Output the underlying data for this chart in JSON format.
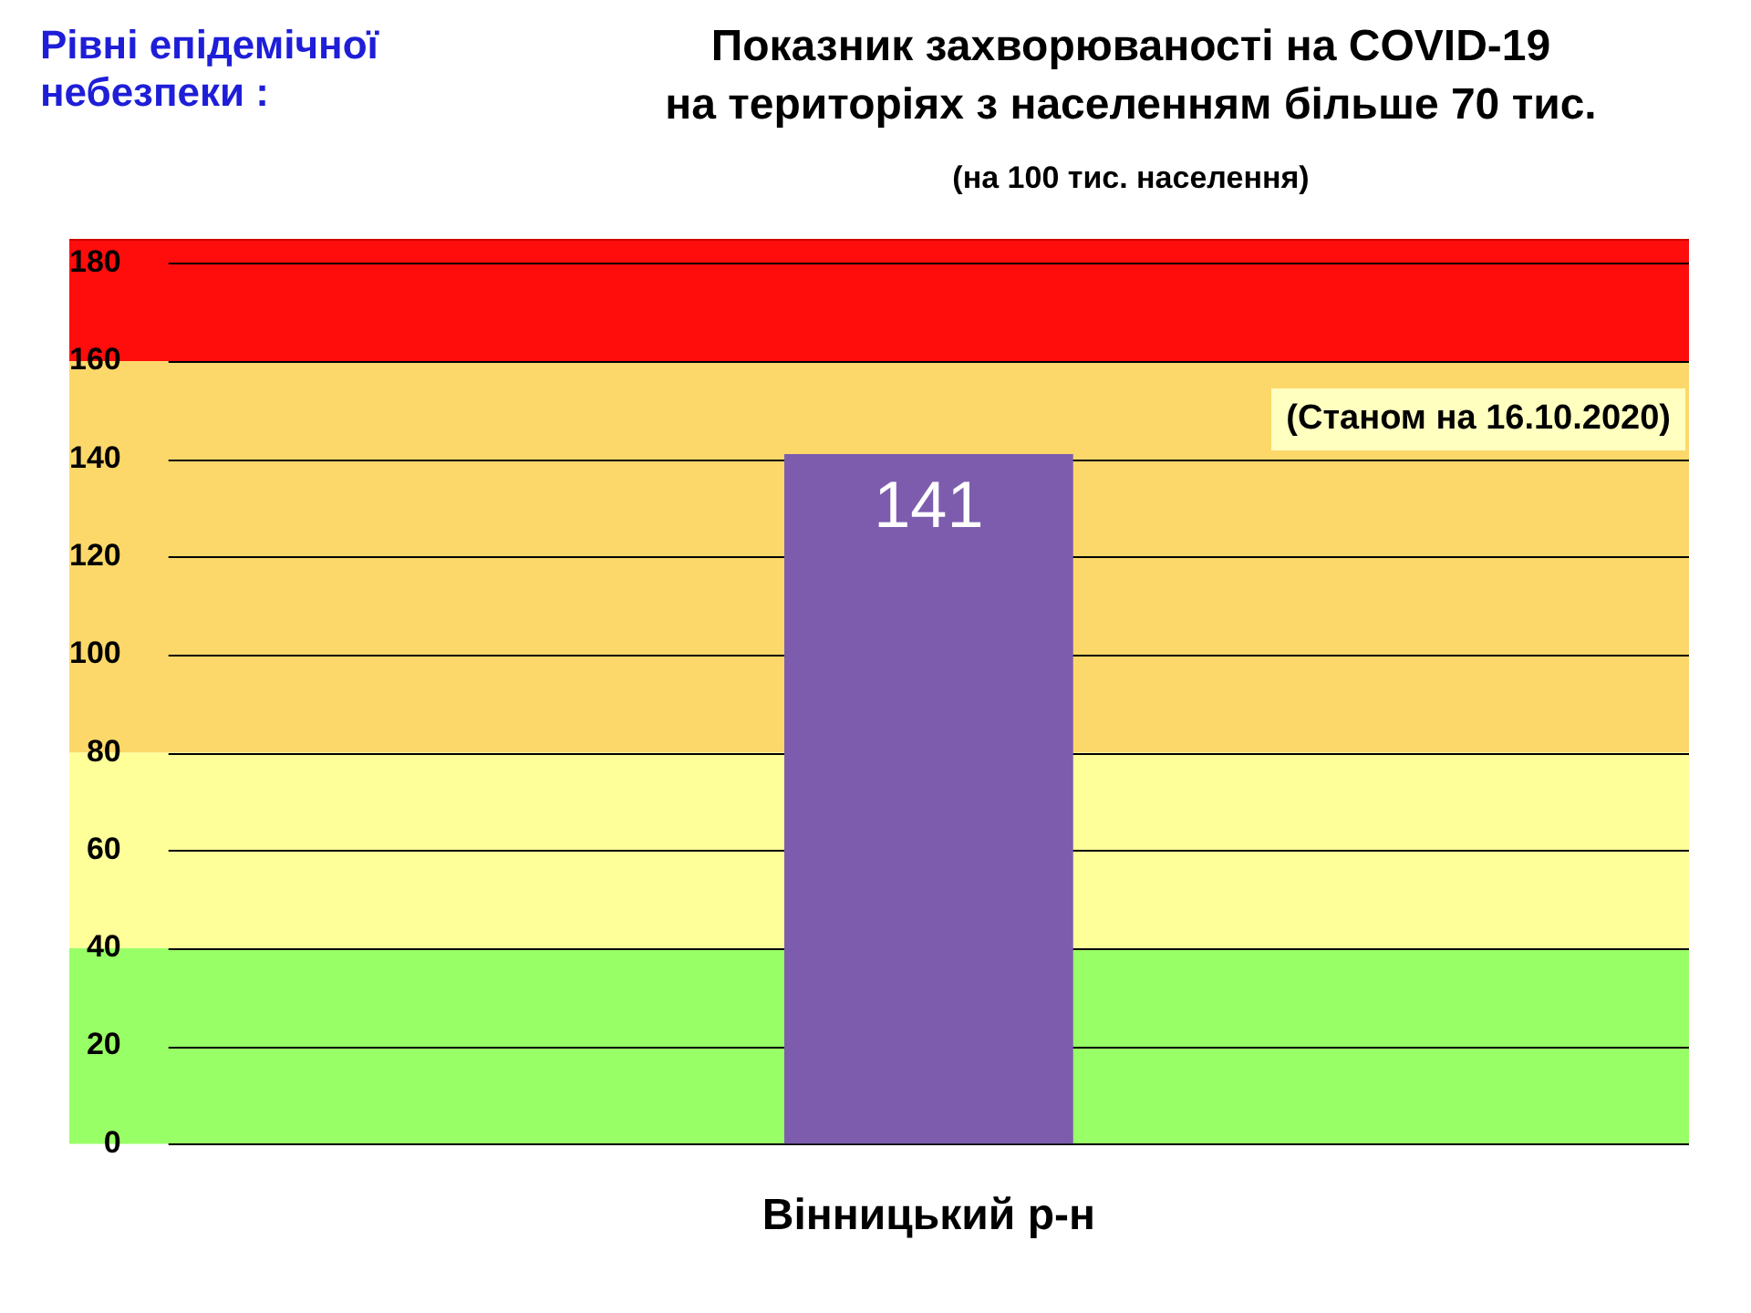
{
  "chart_data": {
    "type": "bar",
    "title": "Показник захворюваності на COVID-19\nна територіях з населенням більше 70 тис.",
    "subtitle": "(на 100 тис. населення)",
    "categories": [
      "Вінницький р-н"
    ],
    "values": [
      141
    ],
    "color": "#7d5cae",
    "data_labels": true,
    "ylim": [
      0,
      185
    ],
    "yticks": [
      0,
      20,
      40,
      60,
      80,
      100,
      120,
      140,
      160,
      180
    ],
    "grid": "y",
    "bands": [
      {
        "axis": "y",
        "from": 0,
        "to": 40,
        "color": "#99ff66"
      },
      {
        "axis": "y",
        "from": 40,
        "to": 80,
        "color": "#ffff99"
      },
      {
        "axis": "y",
        "from": 80,
        "to": 160,
        "color": "#fcd86a"
      },
      {
        "axis": "y",
        "from": 160,
        "to": 185,
        "color": "#ff0d0d"
      }
    ],
    "annotations": [
      "Рівні епідемічної небезпеки :",
      "(Станом на 16.10.2020)"
    ]
  }
}
